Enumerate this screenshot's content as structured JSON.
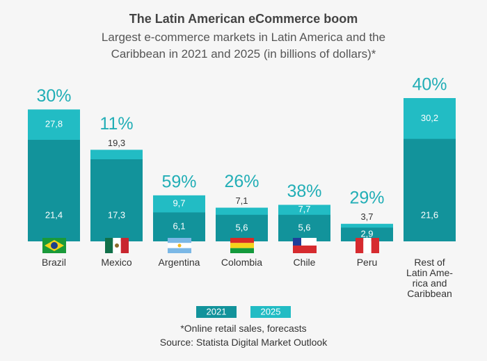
{
  "chart_data": {
    "type": "overlap-bar",
    "title": "The Latin American eCommerce boom",
    "subtitle": "Largest e-commerce markets in Latin America and the Caribbean in 2021 and 2025 (in billions of dollars)*",
    "categories": [
      "Brazil",
      "Mexico",
      "Argentina",
      "Colombia",
      "Chile",
      "Peru",
      "Rest of\nLatin Ame-\nrica and\nCaribbean"
    ],
    "series": [
      {
        "name": "2021",
        "color": "#12939b",
        "values": [
          21.4,
          17.3,
          6.1,
          5.6,
          5.6,
          2.9,
          21.6
        ],
        "value_labels": [
          "21,4",
          "17,3",
          "6,1",
          "5,6",
          "5,6",
          "2,9",
          "21,6"
        ]
      },
      {
        "name": "2025",
        "color": "#22bcc4",
        "values": [
          27.8,
          19.3,
          9.7,
          7.1,
          7.7,
          3.7,
          30.2
        ],
        "value_labels": [
          "27,8",
          "19,3",
          "9,7",
          "7,1",
          "7,7",
          "3,7",
          "30,2"
        ]
      }
    ],
    "growth": {
      "values": [
        30,
        11,
        59,
        26,
        38,
        29,
        40
      ],
      "value_labels": [
        "30%",
        "11%",
        "59%",
        "26%",
        "38%",
        "29%",
        "40%"
      ]
    },
    "footnote": "*Online retail sales, forecasts",
    "source": "Source: Statista Digital Market Outlook"
  }
}
